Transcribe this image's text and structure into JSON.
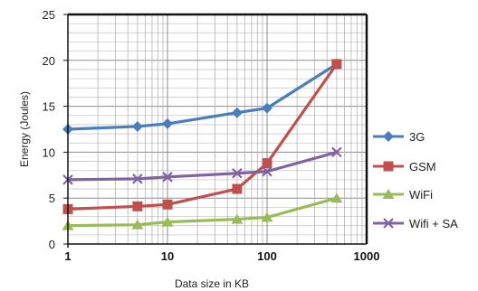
{
  "chart_data": {
    "type": "line",
    "xlabel": "Data size in KB",
    "ylabel": "Energy (Joules)",
    "xscale": "log",
    "xlim": [
      1,
      1000
    ],
    "ylim": [
      0,
      25
    ],
    "xticks": [
      "1",
      "10",
      "100",
      "1000"
    ],
    "yticks": [
      "0",
      "5",
      "10",
      "15",
      "20",
      "25"
    ],
    "grid": true,
    "legend": "right",
    "x": [
      1,
      5,
      10,
      50,
      100,
      500
    ],
    "series": [
      {
        "name": "3G",
        "values": [
          12.5,
          12.8,
          13.1,
          14.3,
          14.8,
          19.6
        ],
        "color": "#4a7ebb",
        "marker": "diamond"
      },
      {
        "name": "GSM",
        "values": [
          3.8,
          4.1,
          4.3,
          6.0,
          8.8,
          19.6
        ],
        "color": "#c0504d",
        "marker": "square"
      },
      {
        "name": "WiFi",
        "values": [
          2.0,
          2.1,
          2.4,
          2.7,
          2.9,
          5.0
        ],
        "color": "#9bbb59",
        "marker": "triangle"
      },
      {
        "name": "Wifi + SA",
        "values": [
          7.0,
          7.1,
          7.3,
          7.7,
          7.9,
          10.0
        ],
        "color": "#8064a2",
        "marker": "x"
      }
    ]
  }
}
